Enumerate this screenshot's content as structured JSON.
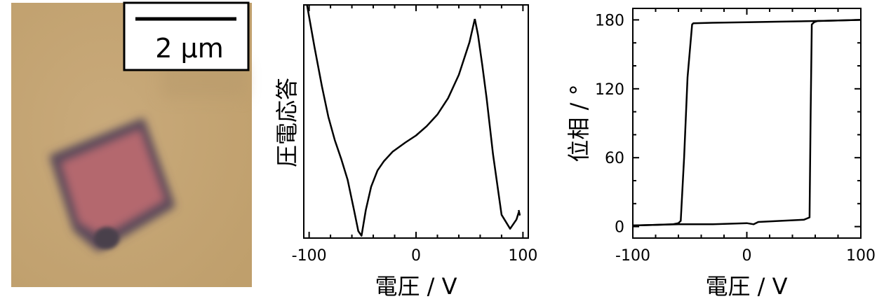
{
  "micrograph": {
    "scale_bar_label": "2 µm"
  },
  "chart_data": [
    {
      "type": "line",
      "id": "piezo",
      "xlabel": "電圧 / V",
      "ylabel": "圧電応答",
      "xlim": [
        -105,
        105
      ],
      "ylim": [
        0,
        1
      ],
      "xticks": [
        -100,
        0,
        100
      ],
      "xtick_labels": [
        "-100",
        "0",
        "100"
      ],
      "yticks": [],
      "grid": false,
      "series": [
        {
          "x": [
            -102,
            -95,
            -88,
            -82,
            -76,
            -70,
            -64,
            -58,
            -54,
            -51,
            -47,
            -42,
            -36,
            -30,
            -22,
            -10,
            0,
            10,
            20,
            30,
            40,
            50,
            55
          ],
          "y": [
            1.0,
            0.82,
            0.65,
            0.52,
            0.42,
            0.34,
            0.25,
            0.12,
            0.03,
            0.01,
            0.12,
            0.22,
            0.29,
            0.33,
            0.37,
            0.41,
            0.44,
            0.48,
            0.53,
            0.6,
            0.7,
            0.84,
            0.94
          ]
        },
        {
          "x": [
            55,
            58,
            62,
            66,
            72,
            80,
            88,
            94,
            96,
            97,
            96
          ],
          "y": [
            0.94,
            0.87,
            0.74,
            0.6,
            0.36,
            0.1,
            0.04,
            0.08,
            0.11,
            0.1,
            0.12
          ]
        }
      ]
    },
    {
      "type": "line",
      "id": "phase",
      "xlabel": "電圧 / V",
      "ylabel": "位相 / °",
      "xlim": [
        -100,
        100
      ],
      "ylim": [
        -10,
        190
      ],
      "xticks": [
        -100,
        0,
        100
      ],
      "xtick_labels": [
        "-100",
        "0",
        "100"
      ],
      "yticks": [
        0,
        60,
        120,
        180
      ],
      "ytick_labels": [
        "0",
        "60",
        "120",
        "180"
      ],
      "grid": false,
      "series": [
        {
          "x": [
            -100,
            -80,
            -65,
            -60,
            -58,
            -55,
            -52,
            -48,
            -47,
            -30,
            0,
            30,
            60,
            80,
            100
          ],
          "y": [
            1,
            1.5,
            2,
            3,
            5,
            60,
            130,
            176,
            177,
            177.5,
            178,
            178.5,
            179,
            179.5,
            180
          ]
        },
        {
          "x": [
            100,
            80,
            62,
            59,
            57,
            56,
            55,
            50,
            30,
            10,
            6,
            0,
            -30,
            -60,
            -100
          ],
          "y": [
            180,
            179.5,
            179,
            178,
            176,
            100,
            8,
            6,
            5,
            4,
            2,
            3,
            2,
            2,
            1
          ]
        }
      ]
    }
  ]
}
